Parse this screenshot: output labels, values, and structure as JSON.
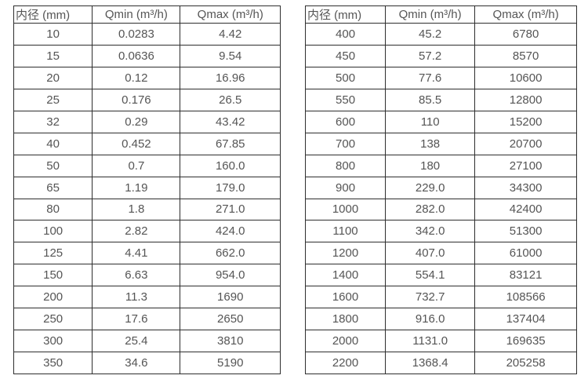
{
  "colors": {
    "background": "#ffffff",
    "border": "#2e2e2e",
    "text": "#555555"
  },
  "chart_data": [
    {
      "type": "table",
      "title": "",
      "columns": [
        "内径 (mm)",
        "Qmin (m³/h)",
        "Qmax (m³/h)"
      ],
      "rows": [
        [
          "10",
          "0.0283",
          "4.42"
        ],
        [
          "15",
          "0.0636",
          "9.54"
        ],
        [
          "20",
          "0.12",
          "16.96"
        ],
        [
          "25",
          "0.176",
          "26.5"
        ],
        [
          "32",
          "0.29",
          "43.42"
        ],
        [
          "40",
          "0.452",
          "67.85"
        ],
        [
          "50",
          "0.7",
          "160.0"
        ],
        [
          "65",
          "1.19",
          "179.0"
        ],
        [
          "80",
          "1.8",
          "271.0"
        ],
        [
          "100",
          "2.82",
          "424.0"
        ],
        [
          "125",
          "4.41",
          "662.0"
        ],
        [
          "150",
          "6.63",
          "954.0"
        ],
        [
          "200",
          "11.3",
          "1690"
        ],
        [
          "250",
          "17.6",
          "2650"
        ],
        [
          "300",
          "25.4",
          "3810"
        ],
        [
          "350",
          "34.6",
          "5190"
        ]
      ]
    },
    {
      "type": "table",
      "title": "",
      "columns": [
        "内径 (mm)",
        "Qmin (m³/h)",
        "Qmax (m³/h)"
      ],
      "rows": [
        [
          "400",
          "45.2",
          "6780"
        ],
        [
          "450",
          "57.2",
          "8570"
        ],
        [
          "500",
          "77.6",
          "10600"
        ],
        [
          "550",
          "85.5",
          "12800"
        ],
        [
          "600",
          "110",
          "15200"
        ],
        [
          "700",
          "138",
          "20700"
        ],
        [
          "800",
          "180",
          "27100"
        ],
        [
          "900",
          "229.0",
          "34300"
        ],
        [
          "1000",
          "282.0",
          "42400"
        ],
        [
          "1100",
          "342.0",
          "51300"
        ],
        [
          "1200",
          "407.0",
          "61000"
        ],
        [
          "1400",
          "554.1",
          "83121"
        ],
        [
          "1600",
          "732.7",
          "108566"
        ],
        [
          "1800",
          "916.0",
          "137404"
        ],
        [
          "2000",
          "1131.0",
          "169635"
        ],
        [
          "2200",
          "1368.4",
          "205258"
        ]
      ]
    }
  ]
}
